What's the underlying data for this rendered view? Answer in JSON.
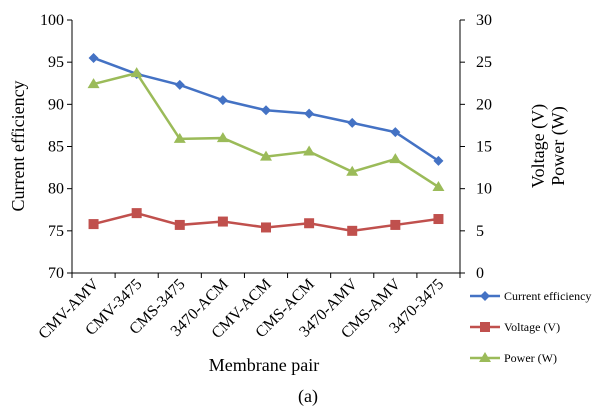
{
  "chart_data": {
    "type": "line",
    "caption": "(a)",
    "xlabel": "Membrane pair",
    "ylabel_left": "Current efficiency",
    "ylabel_right_1": "Voltage (V)",
    "ylabel_right_2": "Power (W)",
    "categories": [
      "CMV-AMV",
      "CMV-3475",
      "CMS-3475",
      "3470-ACM",
      "CMV-ACM",
      "CMS-ACM",
      "3470-AMV",
      "CMS-AMV",
      "3470-3475"
    ],
    "ylim_left": [
      70,
      100
    ],
    "yticks_left": [
      "70",
      "75",
      "80",
      "85",
      "90",
      "95",
      "100"
    ],
    "ylim_right": [
      0,
      30
    ],
    "yticks_right": [
      "0",
      "5",
      "10",
      "15",
      "20",
      "25",
      "30"
    ],
    "grid": false,
    "legend_position": "bottom-right",
    "series": [
      {
        "name": "Current efficiency",
        "axis": "left",
        "color": "#4472C4",
        "marker": "diamond",
        "values": [
          95.5,
          93.6,
          92.3,
          90.5,
          89.3,
          88.9,
          87.8,
          86.7,
          83.3
        ]
      },
      {
        "name": "Voltage (V)",
        "axis": "right",
        "color": "#C0504D",
        "marker": "square",
        "values": [
          5.8,
          7.1,
          5.7,
          6.1,
          5.4,
          5.9,
          5.0,
          5.7,
          6.4
        ]
      },
      {
        "name": "Power (W)",
        "axis": "right",
        "color": "#9BBB59",
        "marker": "triangle",
        "values": [
          22.4,
          23.7,
          15.9,
          16.0,
          13.8,
          14.4,
          12.0,
          13.5,
          10.2
        ]
      }
    ]
  }
}
